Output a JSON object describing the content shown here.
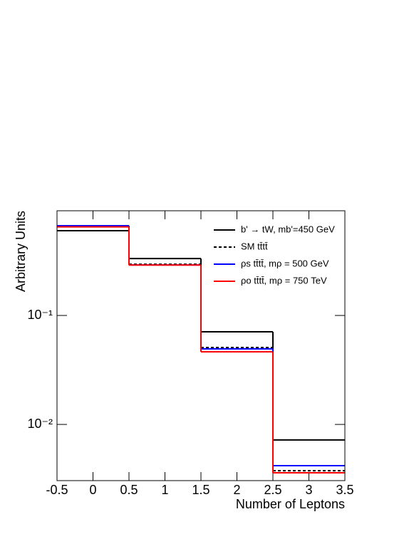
{
  "chart_data": {
    "type": "histogram",
    "x_label": "Number of Leptons",
    "y_label": "Arbitrary Units",
    "bins": [
      -0.5,
      0.5,
      1.5,
      2.5,
      3.5
    ],
    "series": [
      {
        "name": "b' → tW, mb'=450 GeV",
        "color": "#000000",
        "linestyle": "solid",
        "values": [
          0.6,
          0.333,
          0.0708,
          0.0072
        ]
      },
      {
        "name": "SM tt̄tt̄",
        "color": "#000000",
        "linestyle": "dashed",
        "values": [
          0.667,
          0.295,
          0.0508,
          0.00376
        ]
      },
      {
        "name": "ρs tt̄tt̄, mρ = 500 GeV",
        "color": "#0000ff",
        "linestyle": "solid",
        "values": [
          0.667,
          0.291,
          0.0493,
          0.00418
        ]
      },
      {
        "name": "ρo tt̄tt̄, mρ = 750 TeV",
        "color": "#ff0000",
        "linestyle": "solid",
        "values": [
          0.65,
          0.29,
          0.0464,
          0.0036
        ]
      }
    ],
    "xlim": [
      -0.5,
      3.5
    ],
    "xticks": [
      -0.5,
      0,
      0.5,
      1,
      1.5,
      2,
      2.5,
      3,
      3.5
    ],
    "ylim": [
      0.00305,
      0.914
    ],
    "log_y": true,
    "yticks": [
      {
        "value": 0.1,
        "label": "10⁻¹"
      },
      {
        "value": 0.01,
        "label": "10⁻²"
      }
    ],
    "legend": "upper right"
  }
}
